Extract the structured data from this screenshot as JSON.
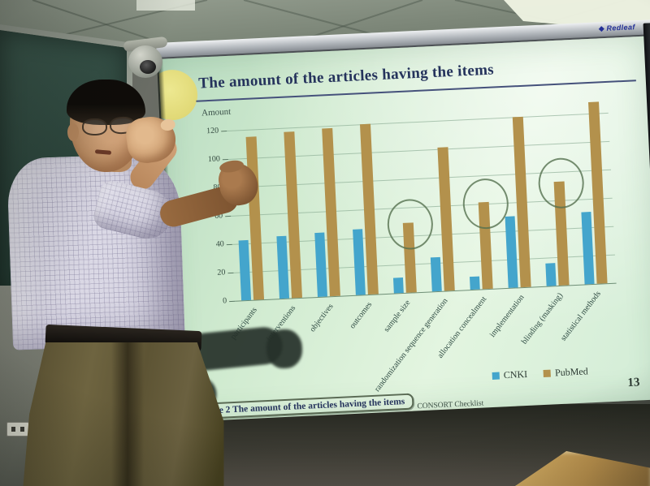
{
  "scene": {
    "projector_screen": {
      "brand_label": "Redleaf"
    },
    "slide": {
      "caption": "Figure 2 The amount of the articles having the items",
      "footer": "CONSORT Checklist",
      "page_number": "13"
    },
    "colors": {
      "cnki_blue": "#44a5cc",
      "pubmed_gold": "#b3914c",
      "slide_background": "#d6eeda",
      "title_text": "#25335c",
      "highlight_circle": "#55704f"
    }
  },
  "chart_data": {
    "type": "bar",
    "title": "The amount of the articles having the items",
    "xlabel": "",
    "ylabel": "Amount",
    "ylim": [
      0,
      140
    ],
    "yticks": [
      0,
      20,
      40,
      60,
      80,
      100,
      120
    ],
    "grid": true,
    "legend_position": "bottom-right",
    "categories": [
      "participants",
      "interventions",
      "objectives",
      "outcomes",
      "sample size",
      "randomization sequence generation",
      "allocation concealment",
      "implementation",
      "blinding (masking)",
      "statistical methods"
    ],
    "series": [
      {
        "name": "CNKI",
        "color": "#44a5cc",
        "values": [
          42,
          44,
          45,
          46,
          11,
          24,
          9,
          50,
          16,
          51
        ]
      },
      {
        "name": "PubMed",
        "color": "#b3914c",
        "values": [
          115,
          117,
          118,
          120,
          49,
          101,
          61,
          120,
          73,
          128
        ]
      }
    ],
    "circled_categories": [
      "sample size",
      "allocation concealment",
      "blinding (masking)"
    ]
  }
}
